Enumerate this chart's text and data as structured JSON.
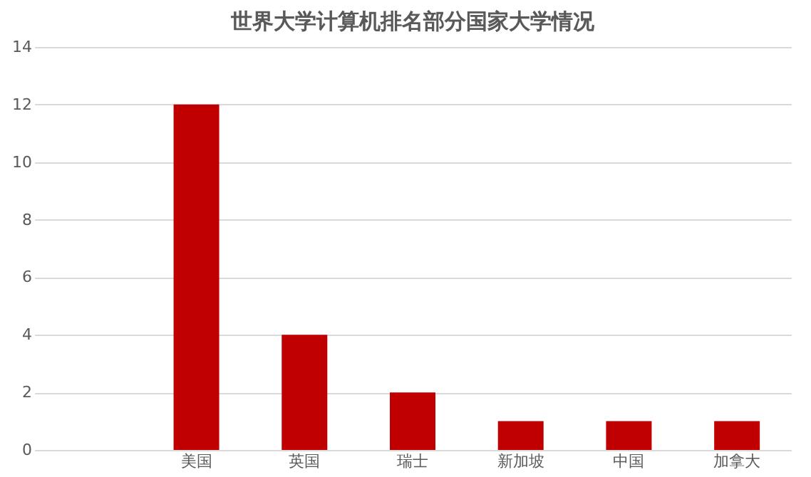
{
  "chart_data": {
    "type": "bar",
    "title": "世界大学计算机排名部分国家大学情况",
    "categories": [
      null,
      "美国",
      "英国",
      "瑞士",
      "新加坡",
      "中国",
      "加拿大"
    ],
    "values": [
      null,
      12,
      4,
      2,
      1,
      1,
      1
    ],
    "color": "#c00000",
    "ylim": [
      0,
      14
    ],
    "yticks": [
      0,
      2,
      4,
      6,
      8,
      10,
      12,
      14
    ],
    "grid": "y"
  }
}
